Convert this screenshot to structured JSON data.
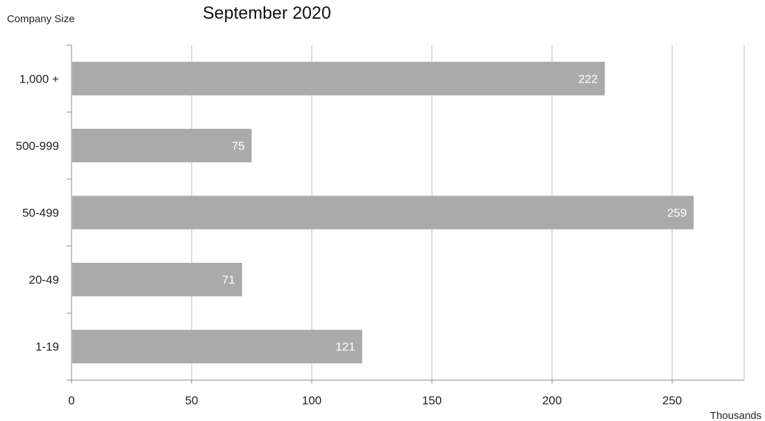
{
  "chart_data": {
    "type": "bar",
    "orientation": "horizontal",
    "title": "September 2020",
    "ylabel": "Company Size",
    "xlabel": "Thousands",
    "categories": [
      "1,000 +",
      "500-999",
      "50-499",
      "20-49",
      "1-19"
    ],
    "values": [
      222,
      75,
      259,
      71,
      121
    ],
    "data_labels": [
      "222",
      "75",
      "259",
      "71",
      "121"
    ],
    "xlim": [
      0,
      280
    ],
    "x_ticks": [
      0,
      50,
      100,
      150,
      200,
      250
    ],
    "x_tick_labels": [
      "0",
      "50",
      "100",
      "150",
      "200",
      "250"
    ],
    "grid": "vertical",
    "legend": "none",
    "colors": {
      "bar": "#aaaaaa",
      "gridline": "#bbbbbb",
      "axis": "#888888",
      "data_label": "#ffffff"
    }
  }
}
